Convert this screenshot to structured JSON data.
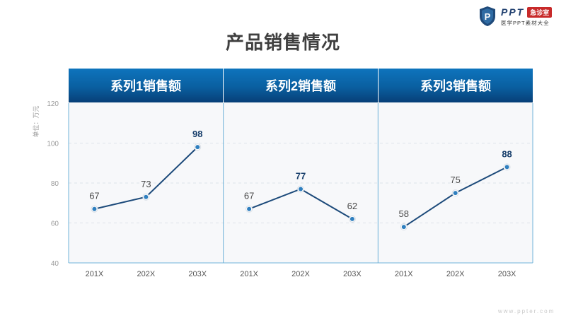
{
  "logo": {
    "text": "PPT",
    "badge": "急诊室",
    "sub": "医学PPT素材大全",
    "shield_letter": "P"
  },
  "title": "产品销售情况",
  "watermark": "www.ppter.com",
  "colors": {
    "header_blue": "#0a5fa0",
    "line": "#1c4a7a",
    "marker": "#2f7fbf",
    "axis": "#6fb3d9"
  },
  "chart_data": {
    "type": "line",
    "ylabel": "单位：万元",
    "ylim": [
      40,
      120
    ],
    "yticks": [
      40,
      60,
      80,
      100,
      120
    ],
    "grid": true,
    "panels": [
      {
        "title": "系列1销售额",
        "categories": [
          "201X",
          "202X",
          "203X"
        ],
        "values": [
          67,
          73,
          98
        ],
        "highlight_index": 2
      },
      {
        "title": "系列2销售额",
        "categories": [
          "201X",
          "202X",
          "203X"
        ],
        "values": [
          67,
          77,
          62
        ],
        "highlight_index": 1
      },
      {
        "title": "系列3销售额",
        "categories": [
          "201X",
          "202X",
          "203X"
        ],
        "values": [
          58,
          75,
          88
        ],
        "highlight_index": 2
      }
    ]
  }
}
